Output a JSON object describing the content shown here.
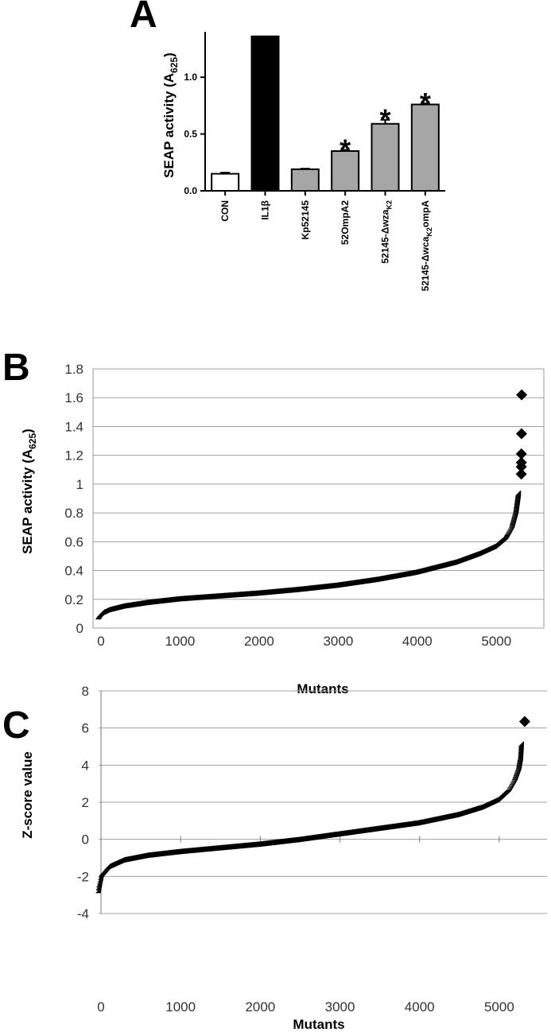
{
  "panels": {
    "a": {
      "letter": "A"
    },
    "b": {
      "letter": "B"
    },
    "c": {
      "letter": "C"
    }
  },
  "chart_data": [
    {
      "type": "bar",
      "panel": "A",
      "categories": [
        "CON",
        "IL1β",
        "Kp52145",
        "52OmpA2",
        "52145-Δwza_K2",
        "52145-Δwca_K2ompA"
      ],
      "category_labels": [
        {
          "main": "CON"
        },
        {
          "main": "IL1",
          "greek": "β"
        },
        {
          "main": "Kp52145"
        },
        {
          "main": "52OmpA2"
        },
        {
          "main": "52145-",
          "greek": "Δ",
          "main2": "wza",
          "sub": "K2"
        },
        {
          "main": "52145-",
          "greek": "Δ",
          "main2": "wca",
          "sub": "K2",
          "after": "ompA"
        }
      ],
      "values": [
        0.15,
        1.36,
        0.19,
        0.35,
        0.59,
        0.76
      ],
      "errors": [
        0.01,
        0.0,
        0.005,
        0.01,
        0.035,
        0.01
      ],
      "bar_colors": [
        "#ffffff",
        "#000000",
        "#a6a6a6",
        "#a6a6a6",
        "#a6a6a6",
        "#a6a6a6"
      ],
      "significant": [
        false,
        false,
        false,
        true,
        true,
        true
      ],
      "significance_symbol": "*",
      "ylabel": "SEAP activity (A",
      "ylabel_sub": "625",
      "ylabel_close": ")",
      "ylim": [
        0,
        1.4
      ],
      "yticks": [
        "0.0",
        "0.5",
        "1.0"
      ],
      "ytick_values": [
        0,
        0.5,
        1.0
      ]
    },
    {
      "type": "scatter",
      "panel": "B",
      "xlabel": "Mutants",
      "ylabel": "SEAP activity (A",
      "ylabel_sub": "625",
      "ylabel_close": ")",
      "xlim": [
        -100,
        5600
      ],
      "ylim": [
        0,
        1.8
      ],
      "xticks": [
        "0",
        "1000",
        "2000",
        "3000",
        "4000",
        "5000"
      ],
      "xtick_values": [
        0,
        1000,
        2000,
        3000,
        4000,
        5000
      ],
      "yticks": [
        "0",
        "0.2",
        "0.4",
        "0.6",
        "0.8",
        "1",
        "1.2",
        "1.4",
        "1.6",
        "1.8"
      ],
      "ytick_values": [
        0,
        0.2,
        0.4,
        0.6,
        0.8,
        1.0,
        1.2,
        1.4,
        1.6,
        1.8
      ],
      "grid": true,
      "marker": "diamond",
      "n_points": 5320,
      "curve": [
        [
          0,
          0.06
        ],
        [
          10,
          0.07
        ],
        [
          40,
          0.09
        ],
        [
          120,
          0.11
        ],
        [
          300,
          0.135
        ],
        [
          600,
          0.16
        ],
        [
          1000,
          0.185
        ],
        [
          1500,
          0.205
        ],
        [
          2000,
          0.225
        ],
        [
          2500,
          0.25
        ],
        [
          3000,
          0.28
        ],
        [
          3500,
          0.32
        ],
        [
          4000,
          0.37
        ],
        [
          4500,
          0.44
        ],
        [
          4800,
          0.5
        ],
        [
          5000,
          0.55
        ],
        [
          5150,
          0.62
        ],
        [
          5230,
          0.7
        ],
        [
          5280,
          0.8
        ],
        [
          5300,
          0.88
        ],
        [
          5310,
          0.92
        ]
      ],
      "outliers": [
        [
          5315,
          1.07
        ],
        [
          5315,
          1.12
        ],
        [
          5316,
          1.15
        ],
        [
          5316,
          1.21
        ],
        [
          5318,
          1.35
        ],
        [
          5320,
          1.62
        ]
      ]
    },
    {
      "type": "scatter",
      "panel": "C",
      "xlabel": "Mutants",
      "ylabel": "Z-score value",
      "xlim": [
        -30,
        5600
      ],
      "ylim": [
        -4,
        8
      ],
      "xticks": [
        "0",
        "1000",
        "2000",
        "3000",
        "4000",
        "5000"
      ],
      "xtick_values": [
        0,
        1000,
        2000,
        3000,
        4000,
        5000
      ],
      "yticks": [
        "-4",
        "-2",
        "0",
        "2",
        "4",
        "6",
        "8"
      ],
      "ytick_values": [
        -4,
        -2,
        0,
        2,
        4,
        6,
        8
      ],
      "grid": true,
      "marker": "diamond",
      "n_points": 5320,
      "curve": [
        [
          0,
          -2.9
        ],
        [
          10,
          -2.6
        ],
        [
          40,
          -2.0
        ],
        [
          120,
          -1.6
        ],
        [
          300,
          -1.25
        ],
        [
          600,
          -1.0
        ],
        [
          1000,
          -0.8
        ],
        [
          1500,
          -0.6
        ],
        [
          2000,
          -0.4
        ],
        [
          2500,
          -0.15
        ],
        [
          3000,
          0.15
        ],
        [
          3500,
          0.45
        ],
        [
          4000,
          0.75
        ],
        [
          4500,
          1.2
        ],
        [
          4800,
          1.6
        ],
        [
          5000,
          2.0
        ],
        [
          5150,
          2.6
        ],
        [
          5230,
          3.2
        ],
        [
          5280,
          3.8
        ],
        [
          5300,
          4.3
        ],
        [
          5310,
          5.0
        ]
      ],
      "outliers": [
        [
          5320,
          6.35
        ]
      ]
    }
  ]
}
